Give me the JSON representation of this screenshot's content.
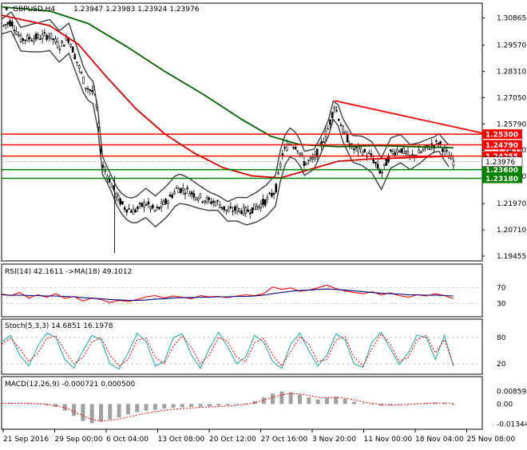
{
  "header": {
    "symbol": "GBPUSD,H4",
    "ohlc": "1.23947 1.23983 1.23924 1.23976"
  },
  "colors": {
    "ma_fast": "#dd0000",
    "ma_slow": "#006400",
    "band": "#3a4048",
    "support": "#008000",
    "resistance": "#ff0000",
    "rsi": "#ff0000",
    "rsi_ma": "#000080",
    "stoch_main": "#20b2aa",
    "stoch_signal": "#ff0000",
    "macd_hist": "#a0a0a0",
    "macd_signal": "#ff0000"
  },
  "chart_data": [
    {
      "id": "price",
      "type": "candlestick",
      "title": "GBPUSD,H4",
      "ylim": [
        1.193,
        1.315
      ],
      "y_ticks": [
        "1.30865",
        "1.29570",
        "1.28310",
        "1.27050",
        "1.25790",
        "1.24530",
        "1.23270",
        "1.21970",
        "1.20710",
        "1.19455"
      ],
      "current_price": 1.23976,
      "current_price_label": "1.23976",
      "resistance_line": [
        {
          "x": 0.693,
          "y": 1.269
        },
        {
          "x": 1.0,
          "y": 1.2535
        }
      ],
      "horizontal_levels": [
        {
          "value": 1.253,
          "label": "1.25300",
          "kind": "resistance"
        },
        {
          "value": 1.2479,
          "label": "1.24790",
          "kind": "resistance"
        },
        {
          "value": 1.2425,
          "label": "1.24255",
          "kind": "resistance"
        },
        {
          "value": 1.236,
          "label": "1.23600",
          "kind": "support"
        },
        {
          "value": 1.2318,
          "label": "1.23180",
          "kind": "support"
        }
      ],
      "price_path": [
        [
          0.0,
          1.3045
        ],
        [
          0.02,
          1.307
        ],
        [
          0.04,
          1.2985
        ],
        [
          0.06,
          1.299
        ],
        [
          0.08,
          1.2995
        ],
        [
          0.1,
          1.3005
        ],
        [
          0.12,
          1.295
        ],
        [
          0.14,
          1.299
        ],
        [
          0.155,
          1.289
        ],
        [
          0.175,
          1.276
        ],
        [
          0.195,
          1.272
        ],
        [
          0.21,
          1.238
        ],
        [
          0.225,
          1.231
        ],
        [
          0.24,
          1.223
        ],
        [
          0.255,
          1.218
        ],
        [
          0.275,
          1.216
        ],
        [
          0.3,
          1.22
        ],
        [
          0.32,
          1.216
        ],
        [
          0.345,
          1.221
        ],
        [
          0.365,
          1.227
        ],
        [
          0.385,
          1.226
        ],
        [
          0.41,
          1.223
        ],
        [
          0.43,
          1.221
        ],
        [
          0.45,
          1.22
        ],
        [
          0.47,
          1.216
        ],
        [
          0.49,
          1.217
        ],
        [
          0.51,
          1.216
        ],
        [
          0.53,
          1.218
        ],
        [
          0.55,
          1.221
        ],
        [
          0.57,
          1.226
        ],
        [
          0.585,
          1.244
        ],
        [
          0.6,
          1.249
        ],
        [
          0.615,
          1.247
        ],
        [
          0.63,
          1.239
        ],
        [
          0.65,
          1.241
        ],
        [
          0.665,
          1.248
        ],
        [
          0.68,
          1.256
        ],
        [
          0.693,
          1.267
        ],
        [
          0.71,
          1.255
        ],
        [
          0.73,
          1.246
        ],
        [
          0.75,
          1.245
        ],
        [
          0.77,
          1.242
        ],
        [
          0.79,
          1.234
        ],
        [
          0.81,
          1.244
        ],
        [
          0.83,
          1.246
        ],
        [
          0.85,
          1.242
        ],
        [
          0.87,
          1.244
        ],
        [
          0.89,
          1.247
        ],
        [
          0.91,
          1.249
        ],
        [
          0.925,
          1.244
        ],
        [
          0.94,
          1.2398
        ]
      ],
      "ma_fast_path": [
        [
          0.0,
          1.31
        ],
        [
          0.1,
          1.305
        ],
        [
          0.16,
          1.296
        ],
        [
          0.22,
          1.28
        ],
        [
          0.28,
          1.265
        ],
        [
          0.34,
          1.253
        ],
        [
          0.4,
          1.244
        ],
        [
          0.46,
          1.237
        ],
        [
          0.52,
          1.233
        ],
        [
          0.58,
          1.232
        ],
        [
          0.64,
          1.236
        ],
        [
          0.7,
          1.24
        ],
        [
          0.76,
          1.241
        ],
        [
          0.82,
          1.2415
        ],
        [
          0.88,
          1.242
        ],
        [
          0.94,
          1.2425
        ]
      ],
      "ma_slow_path": [
        [
          0.0,
          1.314
        ],
        [
          0.1,
          1.312
        ],
        [
          0.18,
          1.306
        ],
        [
          0.26,
          1.295
        ],
        [
          0.34,
          1.283
        ],
        [
          0.42,
          1.272
        ],
        [
          0.5,
          1.26
        ],
        [
          0.56,
          1.252
        ],
        [
          0.62,
          1.248
        ],
        [
          0.7,
          1.247
        ],
        [
          0.78,
          1.2475
        ],
        [
          0.86,
          1.247
        ],
        [
          0.94,
          1.2465
        ]
      ]
    },
    {
      "id": "rsi",
      "type": "line",
      "title": "RSI(14) 42.1611 ->MA(18) 49.1012",
      "ylim": [
        0,
        100
      ],
      "y_ticks": [
        {
          "value": 70,
          "label": "70"
        },
        {
          "value": 30,
          "label": "30"
        }
      ],
      "series": [
        {
          "name": "RSI(14)",
          "values": [
            54,
            50,
            58,
            44,
            52,
            46,
            55,
            43,
            48,
            36,
            44,
            40,
            32,
            38,
            35,
            40,
            47,
            50,
            44,
            49,
            46,
            42,
            50,
            47,
            48,
            45,
            49,
            52,
            50,
            55,
            72,
            66,
            70,
            61,
            64,
            70,
            77,
            68,
            62,
            58,
            55,
            60,
            52,
            57,
            50,
            46,
            52,
            49,
            55,
            50,
            42
          ]
        },
        {
          "name": "MA(18)",
          "values": [
            52,
            51,
            51,
            50,
            50,
            49,
            49,
            48,
            47,
            45,
            43,
            42,
            40,
            39,
            38,
            38,
            39,
            41,
            42,
            44,
            45,
            45,
            46,
            46,
            47,
            47,
            48,
            48,
            49,
            51,
            55,
            58,
            61,
            63,
            64,
            66,
            67,
            66,
            64,
            62,
            60,
            58,
            56,
            55,
            54,
            52,
            52,
            51,
            51,
            50,
            49
          ]
        }
      ]
    },
    {
      "id": "stoch",
      "type": "line",
      "title": "Stoch(5,3,3) 14.6851 16.1978",
      "ylim": [
        0,
        100
      ],
      "y_ticks": [
        {
          "value": 80,
          "label": "80"
        },
        {
          "value": 20,
          "label": "20"
        }
      ],
      "series": [
        {
          "name": "%K",
          "values": [
            70,
            85,
            40,
            15,
            60,
            90,
            80,
            30,
            10,
            50,
            85,
            75,
            20,
            8,
            45,
            90,
            70,
            15,
            25,
            80,
            88,
            40,
            10,
            55,
            92,
            60,
            20,
            35,
            85,
            70,
            25,
            10,
            65,
            90,
            50,
            15,
            40,
            88,
            75,
            20,
            12,
            70,
            92,
            55,
            18,
            45,
            85,
            80,
            30,
            85,
            15
          ]
        },
        {
          "name": "%D",
          "values": [
            65,
            78,
            55,
            25,
            45,
            78,
            84,
            50,
            20,
            35,
            70,
            80,
            40,
            15,
            30,
            75,
            78,
            35,
            20,
            60,
            84,
            58,
            20,
            40,
            80,
            72,
            35,
            25,
            68,
            78,
            40,
            15,
            48,
            82,
            65,
            25,
            30,
            75,
            82,
            35,
            15,
            55,
            88,
            65,
            25,
            35,
            75,
            85,
            45,
            75,
            16
          ]
        }
      ]
    },
    {
      "id": "macd",
      "type": "bar",
      "title": "MACD(12,26,9) -0.000721 0.000500",
      "ylim": [
        -0.016,
        0.011
      ],
      "y_ticks": [
        {
          "value": 0.008594,
          "label": "0.008594"
        },
        {
          "value": 0.0,
          "label": "0.00"
        },
        {
          "value": -0.013447,
          "label": "-0.013447"
        }
      ],
      "series": [
        {
          "name": "MACD",
          "values": [
            0.0005,
            0.0006,
            0.0004,
            0.0002,
            -0.0002,
            -0.0008,
            -0.002,
            -0.0045,
            -0.008,
            -0.0115,
            -0.013,
            -0.012,
            -0.0105,
            -0.009,
            -0.007,
            -0.0055,
            -0.0045,
            -0.0038,
            -0.003,
            -0.0025,
            -0.0022,
            -0.002,
            -0.0018,
            -0.0015,
            -0.0012,
            -0.0008,
            -0.0004,
            0.0005,
            0.002,
            0.0045,
            0.007,
            0.0085,
            0.008,
            0.0065,
            0.0045,
            0.003,
            0.004,
            0.005,
            0.0035,
            0.0015,
            0.0005,
            -0.0005,
            -0.0012,
            -0.001,
            -0.0005,
            0.0,
            0.0004,
            0.0008,
            0.001,
            0.0008,
            -0.0007
          ]
        },
        {
          "name": "Signal",
          "values": [
            0.0004,
            0.0005,
            0.0005,
            0.0004,
            0.0002,
            -0.0002,
            -0.001,
            -0.0025,
            -0.005,
            -0.008,
            -0.0105,
            -0.0115,
            -0.0112,
            -0.0102,
            -0.0088,
            -0.0074,
            -0.0062,
            -0.0052,
            -0.0043,
            -0.0036,
            -0.0031,
            -0.0027,
            -0.0023,
            -0.002,
            -0.0017,
            -0.0013,
            -0.0009,
            -0.0003,
            0.0008,
            0.0025,
            0.0045,
            0.0062,
            0.007,
            0.0068,
            0.0058,
            0.0045,
            0.0042,
            0.0045,
            0.004,
            0.0028,
            0.0015,
            0.0005,
            -0.0003,
            -0.0006,
            -0.0006,
            -0.0003,
            0.0001,
            0.0004,
            0.0007,
            0.0007,
            0.0005
          ]
        }
      ]
    }
  ],
  "x_axis_labels": [
    "21 Sep 2016",
    "29 Sep 00:00",
    "6 Oct 04:00",
    "13 Oct 08:00",
    "20 Oct 12:00",
    "27 Oct 16:00",
    "3 Nov 20:00",
    "11 Nov 00:00",
    "18 Nov 04:00",
    "25 Nov 08:00"
  ]
}
